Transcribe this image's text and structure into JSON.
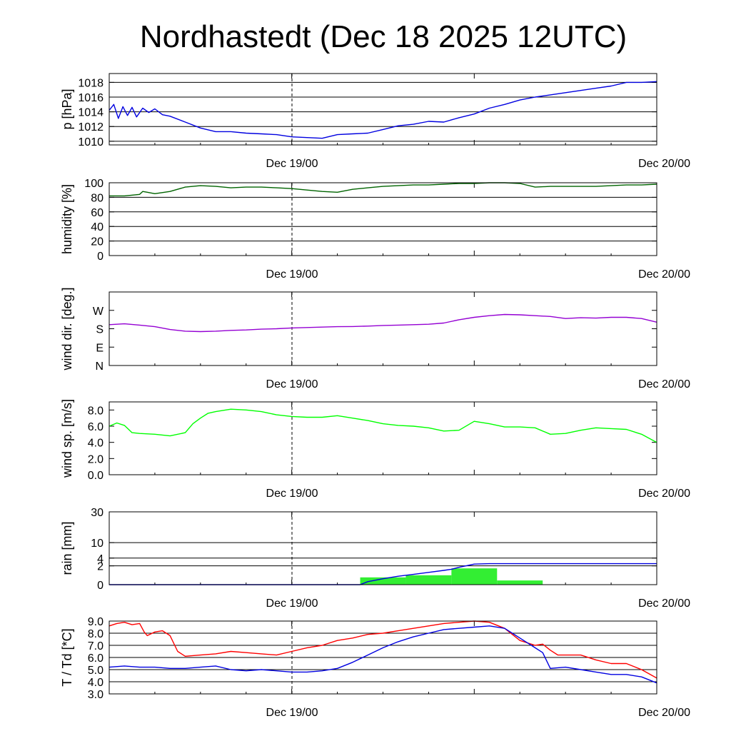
{
  "title": "Nordhastedt (Dec 18 2025 12UTC)",
  "colors": {
    "pressure": "#0000e0",
    "humidity": "#006400",
    "wind_dir": "#9400d3",
    "wind_speed": "#00ff00",
    "rain_bar": "#33ee33",
    "rain_cum": "#0000e0",
    "temperature": "#ff0000",
    "dewpoint": "#0000e0",
    "grid": "#000000"
  },
  "chart_data": [
    {
      "type": "line",
      "name": "pressure",
      "ylabel": "p [hPa]",
      "ylim": [
        1009.5,
        1019.2
      ],
      "yticks": [
        1010,
        1012,
        1014,
        1016,
        1018
      ],
      "ytick_labels": [
        "1010",
        "1012",
        "1014",
        "1016",
        "1018"
      ],
      "xtick_labels": [
        "Dec 19/00",
        "Dec 20/00"
      ],
      "grid": true,
      "series": [
        {
          "name": "p",
          "color_key": "pressure",
          "x": [
            0,
            0.3,
            0.6,
            0.9,
            1.2,
            1.5,
            1.8,
            2.2,
            2.6,
            3,
            3.5,
            4,
            5,
            6,
            7,
            8,
            9,
            10,
            11,
            12,
            13,
            14,
            15,
            16,
            17,
            18,
            19,
            20,
            21,
            22,
            23,
            24,
            25,
            26,
            27,
            28,
            29,
            30,
            31,
            32,
            33,
            34,
            35,
            36
          ],
          "values": [
            1014.2,
            1015.0,
            1013.1,
            1014.7,
            1013.5,
            1014.6,
            1013.3,
            1014.5,
            1013.9,
            1014.4,
            1013.6,
            1013.4,
            1012.6,
            1011.8,
            1011.3,
            1011.3,
            1011.1,
            1011.0,
            1010.9,
            1010.6,
            1010.5,
            1010.4,
            1010.9,
            1011.0,
            1011.1,
            1011.6,
            1012.1,
            1012.3,
            1012.7,
            1012.6,
            1013.2,
            1013.7,
            1014.5,
            1015.0,
            1015.6,
            1016.0,
            1016.3,
            1016.6,
            1016.9,
            1017.2,
            1017.5,
            1018.0,
            1018.0,
            1018.1
          ]
        }
      ]
    },
    {
      "type": "line",
      "name": "humidity",
      "ylabel": "humidity [%]",
      "ylim": [
        0,
        100
      ],
      "yticks": [
        0,
        20,
        40,
        60,
        80,
        100
      ],
      "ytick_labels": [
        "0",
        "20",
        "40",
        "60",
        "80",
        "100"
      ],
      "xtick_labels": [
        "Dec 19/00",
        "Dec 20/00"
      ],
      "grid": true,
      "series": [
        {
          "name": "rh",
          "color_key": "humidity",
          "x": [
            0,
            1,
            2,
            2.2,
            2.5,
            3,
            4,
            5,
            6,
            7,
            8,
            9,
            10,
            11,
            12,
            13,
            14,
            15,
            16,
            17,
            18,
            19,
            20,
            21,
            22,
            23,
            24,
            25,
            26,
            27,
            28,
            29,
            30,
            31,
            32,
            33,
            34,
            35,
            36
          ],
          "values": [
            82,
            82,
            84,
            88,
            87,
            85,
            88,
            94,
            96,
            95,
            93,
            94,
            94,
            93,
            92,
            90,
            88,
            87,
            91,
            93,
            95,
            96,
            97,
            97,
            98,
            99,
            99,
            100,
            100,
            99,
            94,
            95,
            95,
            95,
            95,
            96,
            97,
            97,
            98
          ]
        }
      ]
    },
    {
      "type": "line",
      "name": "wind_direction",
      "ylabel": "wind dir. [deg.]",
      "ylim": [
        0,
        360
      ],
      "yticks": [
        0,
        90,
        180,
        270
      ],
      "ytick_labels": [
        "N",
        "E",
        "S",
        "W"
      ],
      "xtick_labels": [
        "Dec 19/00",
        "Dec 20/00"
      ],
      "grid": false,
      "series": [
        {
          "name": "dir",
          "color_key": "wind_dir",
          "x": [
            0,
            1,
            2,
            3,
            4,
            5,
            6,
            7,
            8,
            9,
            10,
            11,
            12,
            13,
            14,
            15,
            16,
            17,
            18,
            19,
            20,
            21,
            22,
            23,
            24,
            25,
            26,
            27,
            28,
            29,
            30,
            31,
            32,
            33,
            34,
            35,
            36
          ],
          "values": [
            200,
            204,
            198,
            190,
            176,
            168,
            166,
            168,
            172,
            174,
            178,
            180,
            184,
            186,
            188,
            190,
            191,
            193,
            196,
            198,
            200,
            202,
            208,
            224,
            236,
            244,
            250,
            248,
            244,
            240,
            230,
            234,
            232,
            236,
            236,
            230,
            212
          ]
        }
      ]
    },
    {
      "type": "line",
      "name": "wind_speed",
      "ylabel": "wind sp. [m/s]",
      "ylim": [
        0,
        9.0
      ],
      "yticks": [
        0,
        2,
        4,
        6,
        8
      ],
      "ytick_labels": [
        "0.0",
        "2.0",
        "4.0",
        "6.0",
        "8.0"
      ],
      "xtick_labels": [
        "Dec 19/00",
        "Dec 20/00"
      ],
      "grid": false,
      "series": [
        {
          "name": "ff",
          "color_key": "wind_speed",
          "x": [
            0,
            0.5,
            1,
            1.5,
            2,
            3,
            4,
            5,
            5.5,
            6,
            6.5,
            7,
            8,
            9,
            10,
            11,
            12,
            13,
            14,
            15,
            16,
            17,
            18,
            19,
            20,
            21,
            22,
            23,
            24,
            25,
            26,
            27,
            28,
            29,
            30,
            31,
            32,
            33,
            34,
            35,
            36
          ],
          "values": [
            6.0,
            6.4,
            6.1,
            5.2,
            5.1,
            5.0,
            4.8,
            5.2,
            6.3,
            7.0,
            7.6,
            7.8,
            8.1,
            8.0,
            7.8,
            7.4,
            7.2,
            7.1,
            7.1,
            7.3,
            7.0,
            6.7,
            6.3,
            6.1,
            6.0,
            5.8,
            5.4,
            5.5,
            6.6,
            6.3,
            5.9,
            5.9,
            5.8,
            5.0,
            5.1,
            5.5,
            5.8,
            5.7,
            5.6,
            5.0,
            4.0
          ]
        }
      ]
    },
    {
      "type": "bar",
      "name": "rain",
      "ylabel": "rain [mm]",
      "scale": "sqrt",
      "ylim": [
        0,
        30
      ],
      "yticks": [
        0,
        2,
        4,
        10,
        30
      ],
      "ytick_labels": [
        "0",
        "2",
        "4",
        "10",
        "30"
      ],
      "xtick_labels": [
        "Dec 19/00",
        "Dec 20/00"
      ],
      "grid": true,
      "series": [
        {
          "name": "rain_6h",
          "color_key": "rain_bar",
          "bar_start": [
            16.5,
            19.5,
            22.5,
            25.5
          ],
          "bar_end": [
            19.5,
            22.5,
            25.5,
            28.5
          ],
          "values": [
            0.3,
            0.5,
            1.5,
            0.1
          ]
        },
        {
          "name": "rain_cumulative",
          "color_key": "rain_cum",
          "x": [
            0,
            16.5,
            17,
            18,
            19,
            20,
            21,
            22,
            22.5,
            23,
            24,
            25,
            36
          ],
          "values": [
            0,
            0,
            0.05,
            0.2,
            0.4,
            0.6,
            0.85,
            1.15,
            1.35,
            1.7,
            2.4,
            2.5,
            2.5
          ]
        }
      ]
    },
    {
      "type": "line",
      "name": "temperature",
      "ylabel": "T / Td [*C]",
      "ylim": [
        3.0,
        9.0
      ],
      "yticks": [
        3,
        4,
        5,
        6,
        7,
        8,
        9
      ],
      "ytick_labels": [
        "3.0",
        "4.0",
        "5.0",
        "6.0",
        "7.0",
        "8.0",
        "9.0"
      ],
      "xtick_labels": [
        "Dec 19/00",
        "Dec 20/00"
      ],
      "grid": true,
      "series": [
        {
          "name": "T",
          "color_key": "temperature",
          "x": [
            0,
            0.5,
            1,
            1.5,
            2,
            2.3,
            2.5,
            3,
            3.5,
            4,
            4.5,
            5,
            6,
            7,
            8,
            9,
            10,
            11,
            12,
            13,
            14,
            15,
            16,
            17,
            18,
            19,
            20,
            21,
            22,
            23,
            24,
            25,
            26,
            27,
            28,
            28.5,
            29,
            29.5,
            30,
            31,
            32,
            33,
            34,
            35,
            36
          ],
          "values": [
            8.6,
            8.8,
            8.9,
            8.7,
            8.8,
            8.1,
            7.8,
            8.1,
            8.2,
            7.8,
            6.5,
            6.1,
            6.2,
            6.3,
            6.5,
            6.4,
            6.3,
            6.2,
            6.5,
            6.8,
            7.0,
            7.4,
            7.6,
            7.9,
            8.0,
            8.2,
            8.4,
            8.6,
            8.8,
            8.9,
            9.0,
            8.9,
            8.4,
            7.4,
            7.0,
            7.1,
            6.6,
            6.2,
            6.2,
            6.2,
            5.8,
            5.5,
            5.5,
            5.0,
            4.3
          ]
        },
        {
          "name": "Td",
          "color_key": "dewpoint",
          "x": [
            0,
            1,
            2,
            3,
            4,
            5,
            6,
            7,
            8,
            9,
            10,
            11,
            12,
            13,
            14,
            15,
            16,
            17,
            18,
            19,
            20,
            21,
            22,
            23,
            24,
            25,
            26,
            27,
            28,
            28.5,
            29,
            30,
            31,
            32,
            33,
            34,
            35,
            36
          ],
          "values": [
            5.2,
            5.3,
            5.2,
            5.2,
            5.1,
            5.1,
            5.2,
            5.3,
            5.0,
            4.9,
            5.0,
            4.9,
            4.8,
            4.8,
            4.9,
            5.1,
            5.6,
            6.2,
            6.8,
            7.3,
            7.7,
            8.0,
            8.3,
            8.4,
            8.5,
            8.6,
            8.4,
            7.6,
            6.8,
            6.4,
            5.1,
            5.2,
            5.0,
            4.8,
            4.6,
            4.6,
            4.4,
            3.9
          ]
        }
      ]
    }
  ]
}
